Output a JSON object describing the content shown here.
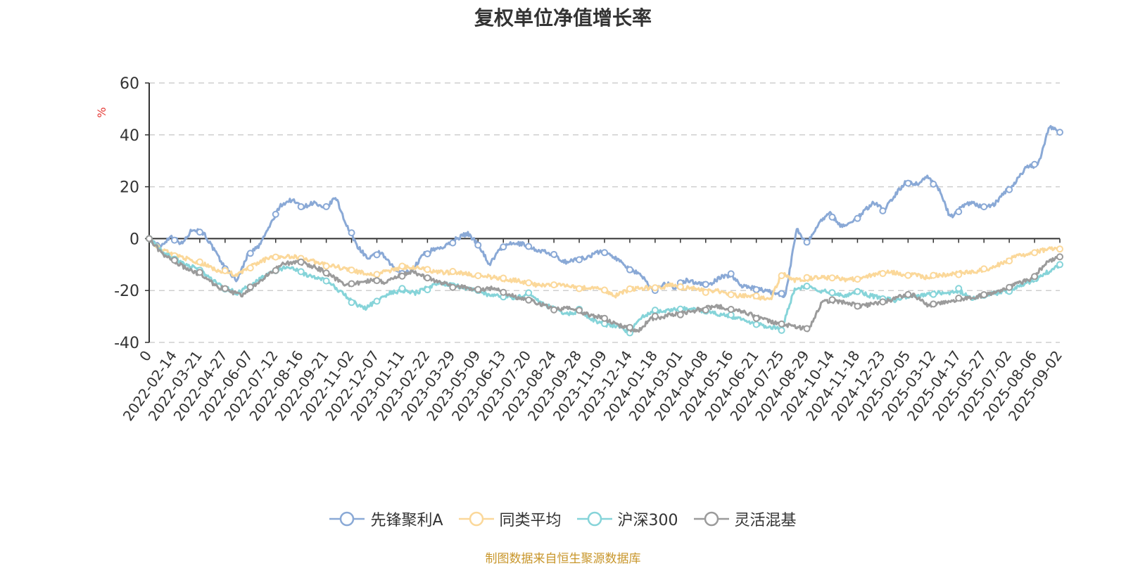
{
  "chart_data": {
    "type": "line",
    "title": "复权单位净值增长率",
    "ylabel": "%",
    "ylim": [
      -40,
      60
    ],
    "yticks": [
      60,
      40,
      20,
      0,
      -20,
      -40
    ],
    "grid": true,
    "legend_position": "bottom",
    "x_tick_labels": [
      "0",
      "2022-02-14",
      "2022-03-21",
      "2022-04-27",
      "2022-06-07",
      "2022-07-12",
      "2022-08-16",
      "2022-09-21",
      "2022-11-02",
      "2022-12-07",
      "2023-01-11",
      "2023-02-22",
      "2023-03-29",
      "2023-05-09",
      "2023-06-13",
      "2023-07-20",
      "2023-08-24",
      "2023-09-28",
      "2023-11-09",
      "2023-12-14",
      "2024-01-18",
      "2024-03-01",
      "2024-04-08",
      "2024-05-16",
      "2024-06-21",
      "2024-07-25",
      "2024-08-29",
      "2024-10-14",
      "2024-11-18",
      "2024-12-23",
      "2025-02-05",
      "2025-03-12",
      "2025-04-17",
      "2025-05-27",
      "2025-07-02",
      "2025-08-06",
      "2025-09-02"
    ],
    "series": [
      {
        "name": "先锋聚利A",
        "color": "#8aa9d6",
        "values": [
          0,
          -3,
          1,
          -2,
          4,
          2,
          -5,
          -12,
          -16,
          -6,
          -3,
          5,
          13,
          15,
          12,
          14,
          11,
          16,
          5,
          -3,
          -8,
          -5,
          -10,
          -14,
          -12,
          -6,
          -4,
          -3,
          0,
          2,
          -2,
          -10,
          -4,
          -2,
          -2,
          -4,
          -5,
          -7,
          -9,
          -8,
          -7,
          -5,
          -6,
          -9,
          -12,
          -15,
          -20,
          -17,
          -19,
          -16,
          -17,
          -18,
          -15,
          -14,
          -18,
          -19,
          -20,
          -21,
          -22,
          4,
          -2,
          6,
          10,
          5,
          6,
          10,
          14,
          11,
          17,
          22,
          21,
          24,
          19,
          8,
          12,
          14,
          12,
          13,
          18,
          22,
          28,
          28,
          43,
          41
        ]
      },
      {
        "name": "同类平均",
        "color": "#fbd89a",
        "values": [
          0,
          -4,
          -6,
          -7,
          -9,
          -10,
          -12,
          -13,
          -14,
          -11,
          -9,
          -7,
          -7,
          -7,
          -8,
          -9,
          -10,
          -11,
          -12,
          -13,
          -14,
          -13,
          -12,
          -11,
          -11,
          -12,
          -13,
          -13,
          -13,
          -14,
          -14,
          -15,
          -16,
          -16,
          -17,
          -18,
          -18,
          -18,
          -18,
          -19,
          -19,
          -20,
          -22,
          -20,
          -19,
          -19,
          -19,
          -18,
          -19,
          -19,
          -20,
          -20,
          -21,
          -22,
          -22,
          -23,
          -23,
          -13,
          -16,
          -16,
          -15,
          -15,
          -15,
          -16,
          -15,
          -14,
          -13,
          -13,
          -14,
          -14,
          -15,
          -14,
          -14,
          -13,
          -13,
          -12,
          -11,
          -9,
          -7,
          -6,
          -5,
          -4,
          -4
        ],
        "sparse": true
      },
      {
        "name": "沪深300",
        "color": "#86d4d9",
        "values": [
          0,
          -5,
          -8,
          -10,
          -12,
          -16,
          -19,
          -21,
          -18,
          -15,
          -12,
          -11,
          -13,
          -15,
          -16,
          -20,
          -24,
          -27,
          -24,
          -21,
          -20,
          -21,
          -19,
          -17,
          -18,
          -19,
          -20,
          -22,
          -22,
          -23,
          -21,
          -25,
          -27,
          -29,
          -28,
          -31,
          -33,
          -34,
          -36,
          -30,
          -28,
          -28,
          -27,
          -27,
          -28,
          -29,
          -30,
          -31,
          -33,
          -34,
          -35,
          -20,
          -18,
          -20,
          -21,
          -22,
          -20,
          -22,
          -23,
          -24,
          -22,
          -22,
          -21,
          -21,
          -20,
          -23,
          -22,
          -21,
          -20,
          -18,
          -16,
          -13,
          -10
        ],
        "sparse": true
      },
      {
        "name": "灵活混基",
        "color": "#9b9b9b",
        "values": [
          0,
          -6,
          -9,
          -12,
          -14,
          -18,
          -20,
          -22,
          -18,
          -14,
          -10,
          -9,
          -10,
          -12,
          -15,
          -18,
          -17,
          -16,
          -17,
          -14,
          -13,
          -15,
          -17,
          -18,
          -19,
          -20,
          -19,
          -21,
          -23,
          -24,
          -26,
          -27,
          -27,
          -29,
          -30,
          -32,
          -34,
          -36,
          -31,
          -30,
          -29,
          -28,
          -27,
          -26,
          -27,
          -28,
          -30,
          -32,
          -33,
          -34,
          -35,
          -24,
          -24,
          -25,
          -26,
          -25,
          -24,
          -22,
          -22,
          -26,
          -25,
          -24,
          -23,
          -22,
          -21,
          -19,
          -17,
          -15,
          -9,
          -7
        ],
        "sparse": true
      }
    ]
  },
  "legend": {
    "items": [
      "先锋聚利A",
      "同类平均",
      "沪深300",
      "灵活混基"
    ]
  },
  "source_note": "制图数据来自恒生聚源数据库"
}
